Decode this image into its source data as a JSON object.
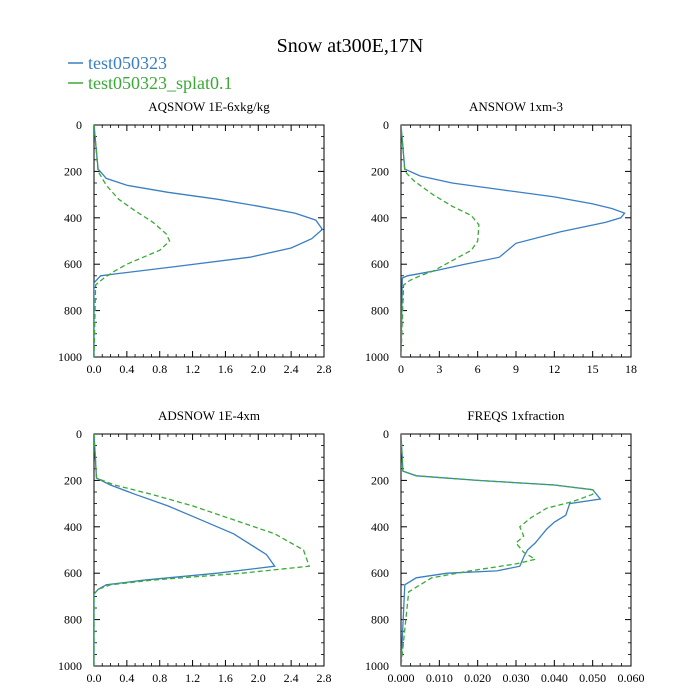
{
  "chart_title": "Snow at300E,17N",
  "legend": [
    {
      "name": "test050323",
      "color": "#3a7fc1",
      "dashed": false
    },
    {
      "name": "test050323_splat0.1",
      "color": "#3aaa35",
      "dashed": true
    }
  ],
  "chart_data": [
    {
      "type": "line",
      "title": "AQSNOW  1E-6xkg/kg",
      "xlim": [
        0,
        2.8
      ],
      "ylim": [
        0,
        1000
      ],
      "y_inverted": true,
      "xticks": [
        0.0,
        0.4,
        0.8,
        1.2,
        1.6,
        2.0,
        2.4,
        2.8
      ],
      "xtick_labels": [
        "0.0",
        "0.4",
        "0.8",
        "1.2",
        "1.6",
        "2.0",
        "2.4",
        "2.8"
      ],
      "yticks": [
        0,
        200,
        400,
        600,
        800,
        1000
      ],
      "ytick_labels": [
        "0",
        "200",
        "400",
        "600",
        "800",
        "1000"
      ],
      "series": [
        {
          "name": "test050323",
          "x": [
            0,
            0.05,
            0.15,
            0.4,
            0.9,
            1.5,
            2.0,
            2.45,
            2.7,
            2.78,
            2.65,
            2.4,
            1.9,
            1.0,
            0.3,
            0.08,
            0.0,
            0
          ],
          "y": [
            0,
            190,
            230,
            260,
            290,
            320,
            350,
            380,
            410,
            450,
            490,
            530,
            570,
            610,
            640,
            650,
            680,
            1000
          ]
        },
        {
          "name": "test050323_splat0.1",
          "x": [
            0,
            0.05,
            0.15,
            0.3,
            0.5,
            0.72,
            0.88,
            0.92,
            0.8,
            0.6,
            0.4,
            0.25,
            0.12,
            0.05,
            0.02,
            0
          ],
          "y": [
            0,
            200,
            260,
            320,
            370,
            420,
            470,
            500,
            540,
            570,
            600,
            630,
            660,
            680,
            690,
            1000
          ]
        }
      ]
    },
    {
      "type": "line",
      "title": "ANSNOW  1xm-3",
      "xlim": [
        0,
        18
      ],
      "ylim": [
        0,
        1000
      ],
      "y_inverted": true,
      "xticks": [
        0,
        3,
        6,
        9,
        12,
        15,
        18
      ],
      "xtick_labels": [
        "0",
        "3",
        "6",
        "9",
        "12",
        "15",
        "18"
      ],
      "yticks": [
        0,
        200,
        400,
        600,
        800,
        1000
      ],
      "ytick_labels": [
        "0",
        "200",
        "400",
        "600",
        "800",
        "1000"
      ],
      "series": [
        {
          "name": "test050323",
          "x": [
            0,
            0.3,
            1.5,
            4,
            8,
            12,
            15,
            16.5,
            17.5,
            17.2,
            16,
            12.5,
            9,
            7.7,
            5,
            2.5,
            0.5,
            0.1,
            0
          ],
          "y": [
            0,
            190,
            220,
            250,
            280,
            310,
            340,
            360,
            380,
            400,
            420,
            460,
            510,
            570,
            600,
            630,
            650,
            660,
            1000
          ]
        },
        {
          "name": "test050323_splat0.1",
          "x": [
            0,
            0.3,
            1,
            2.5,
            4,
            5.5,
            6.1,
            6.0,
            5.5,
            4.5,
            3.5,
            2.5,
            1.5,
            0.7,
            0.2,
            0
          ],
          "y": [
            0,
            200,
            240,
            300,
            350,
            390,
            430,
            500,
            540,
            570,
            600,
            630,
            650,
            670,
            690,
            1000
          ]
        }
      ]
    },
    {
      "type": "line",
      "title": "ADSNOW  1E-4xm",
      "xlim": [
        0,
        2.8
      ],
      "ylim": [
        0,
        1000
      ],
      "y_inverted": true,
      "xticks": [
        0.0,
        0.4,
        0.8,
        1.2,
        1.6,
        2.0,
        2.4,
        2.8
      ],
      "xtick_labels": [
        "0.0",
        "0.4",
        "0.8",
        "1.2",
        "1.6",
        "2.0",
        "2.4",
        "2.8"
      ],
      "yticks": [
        0,
        200,
        400,
        600,
        800,
        1000
      ],
      "ytick_labels": [
        "0",
        "200",
        "400",
        "600",
        "800",
        "1000"
      ],
      "series": [
        {
          "name": "test050323",
          "x": [
            0,
            0.03,
            0.2,
            0.5,
            0.9,
            1.3,
            1.7,
            2.1,
            2.2,
            1.5,
            0.6,
            0.15,
            0.05,
            0.0,
            0
          ],
          "y": [
            0,
            190,
            220,
            260,
            310,
            370,
            430,
            520,
            570,
            600,
            630,
            650,
            670,
            690,
            1000
          ]
        },
        {
          "name": "test050323_splat0.1",
          "x": [
            0,
            0.03,
            0.25,
            0.7,
            1.2,
            1.7,
            2.2,
            2.55,
            2.62,
            1.8,
            0.7,
            0.2,
            0.05,
            0.0,
            0
          ],
          "y": [
            0,
            190,
            220,
            260,
            310,
            370,
            430,
            500,
            570,
            600,
            630,
            650,
            670,
            690,
            1000
          ]
        }
      ]
    },
    {
      "type": "line",
      "title": "FREQS  1xfraction",
      "xlim": [
        0,
        0.06
      ],
      "ylim": [
        0,
        1000
      ],
      "y_inverted": true,
      "xticks": [
        0.0,
        0.01,
        0.02,
        0.03,
        0.04,
        0.05,
        0.06
      ],
      "xtick_labels": [
        "0.000",
        "0.010",
        "0.020",
        "0.030",
        "0.040",
        "0.050",
        "0.060"
      ],
      "yticks": [
        0,
        200,
        400,
        600,
        800,
        1000
      ],
      "ytick_labels": [
        "0",
        "200",
        "400",
        "600",
        "800",
        "1000"
      ],
      "series": [
        {
          "name": "test050323",
          "x": [
            0,
            0.0005,
            0.004,
            0.02,
            0.04,
            0.05,
            0.052,
            0.044,
            0.043,
            0.04,
            0.038,
            0.035,
            0.033,
            0.032,
            0.031,
            0.025,
            0.012,
            0.004,
            0.001,
            0
          ],
          "y": [
            0,
            160,
            180,
            200,
            220,
            240,
            280,
            300,
            350,
            380,
            410,
            470,
            500,
            530,
            570,
            590,
            600,
            620,
            650,
            1000
          ]
        },
        {
          "name": "test050323_splat0.1",
          "x": [
            0,
            0.0005,
            0.004,
            0.02,
            0.04,
            0.05,
            0.05,
            0.045,
            0.038,
            0.034,
            0.031,
            0.032,
            0.03,
            0.032,
            0.035,
            0.03,
            0.018,
            0.008,
            0.002,
            0
          ],
          "y": [
            0,
            160,
            180,
            200,
            220,
            240,
            260,
            290,
            320,
            360,
            400,
            440,
            470,
            510,
            540,
            560,
            590,
            620,
            680,
            1000
          ]
        }
      ]
    }
  ]
}
